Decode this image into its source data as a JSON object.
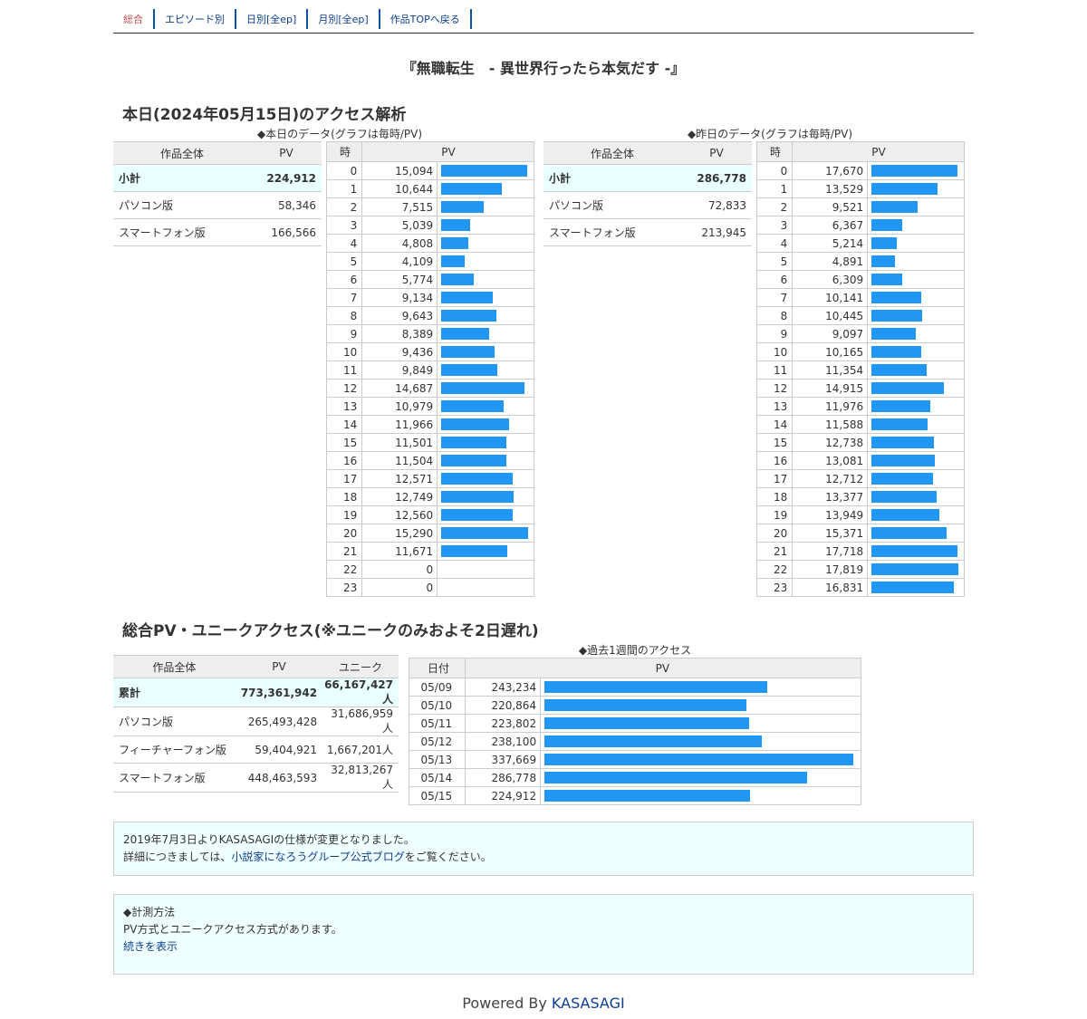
{
  "nav": [
    "総合",
    "エピソード別",
    "日別[全ep]",
    "月別[全ep]",
    "作品TOPへ戻る"
  ],
  "title": "『無職転生　- 異世界行ったら本気だす -』",
  "today_section": {
    "heading": "本日(2024年05月15日)のアクセス解析",
    "today_caption": "◆本日のデータ(グラフは毎時/PV)",
    "yesterday_caption": "◆昨日のデータ(グラフは毎時/PV)",
    "summary_headers": [
      "作品全体",
      "PV"
    ],
    "hour_headers": [
      "時",
      "PV"
    ],
    "today_summary": [
      {
        "label": "小計",
        "pv": "224,912"
      },
      {
        "label": "パソコン版",
        "pv": "58,346"
      },
      {
        "label": "スマートフォン版",
        "pv": "166,566"
      }
    ],
    "yesterday_summary": [
      {
        "label": "小計",
        "pv": "286,778"
      },
      {
        "label": "パソコン版",
        "pv": "72,833"
      },
      {
        "label": "スマートフォン版",
        "pv": "213,945"
      }
    ]
  },
  "chart_data": [
    {
      "type": "bar",
      "title": "◆本日のデータ(グラフは毎時/PV)",
      "categories": [
        "0",
        "1",
        "2",
        "3",
        "4",
        "5",
        "6",
        "7",
        "8",
        "9",
        "10",
        "11",
        "12",
        "13",
        "14",
        "15",
        "16",
        "17",
        "18",
        "19",
        "20",
        "21",
        "22",
        "23"
      ],
      "values": [
        15094,
        10644,
        7515,
        5039,
        4808,
        4109,
        5774,
        9134,
        9643,
        8389,
        9436,
        9849,
        14687,
        10979,
        11966,
        11501,
        11504,
        12571,
        12749,
        12560,
        15290,
        11671,
        0,
        0
      ],
      "labels": [
        "15,094",
        "10,644",
        "7,515",
        "5,039",
        "4,808",
        "4,109",
        "5,774",
        "9,134",
        "9,643",
        "8,389",
        "9,436",
        "9,849",
        "14,687",
        "10,979",
        "11,966",
        "11,501",
        "11,504",
        "12,571",
        "12,749",
        "12,560",
        "15,290",
        "11,671",
        "0",
        "0"
      ],
      "xlabel": "時",
      "ylabel": "PV"
    },
    {
      "type": "bar",
      "title": "◆昨日のデータ(グラフは毎時/PV)",
      "categories": [
        "0",
        "1",
        "2",
        "3",
        "4",
        "5",
        "6",
        "7",
        "8",
        "9",
        "10",
        "11",
        "12",
        "13",
        "14",
        "15",
        "16",
        "17",
        "18",
        "19",
        "20",
        "21",
        "22",
        "23"
      ],
      "values": [
        17670,
        13529,
        9521,
        6367,
        5214,
        4891,
        6309,
        10141,
        10445,
        9097,
        10165,
        11354,
        14915,
        11976,
        11588,
        12738,
        13081,
        12712,
        13377,
        13949,
        15371,
        17718,
        17819,
        16831
      ],
      "labels": [
        "17,670",
        "13,529",
        "9,521",
        "6,367",
        "5,214",
        "4,891",
        "6,309",
        "10,141",
        "10,445",
        "9,097",
        "10,165",
        "11,354",
        "14,915",
        "11,976",
        "11,588",
        "12,738",
        "13,081",
        "12,712",
        "13,377",
        "13,949",
        "15,371",
        "17,718",
        "17,819",
        "16,831"
      ],
      "xlabel": "時",
      "ylabel": "PV"
    },
    {
      "type": "bar",
      "title": "◆過去1週間のアクセス",
      "categories": [
        "05/09",
        "05/10",
        "05/11",
        "05/12",
        "05/13",
        "05/14",
        "05/15"
      ],
      "values": [
        243234,
        220864,
        223802,
        238100,
        337669,
        286778,
        224912
      ],
      "labels": [
        "243,234",
        "220,864",
        "223,802",
        "238,100",
        "337,669",
        "286,778",
        "224,912"
      ],
      "xlabel": "日付",
      "ylabel": "PV"
    }
  ],
  "total_section": {
    "heading": "総合PV・ユニークアクセス(※ユニークのみおよそ2日遅れ)",
    "headers": [
      "作品全体",
      "PV",
      "ユニーク"
    ],
    "rows": [
      {
        "label": "累計",
        "pv": "773,361,942",
        "unique": "66,167,427人"
      },
      {
        "label": "パソコン版",
        "pv": "265,493,428",
        "unique": "31,686,959人"
      },
      {
        "label": "フィーチャーフォン版",
        "pv": "59,404,921",
        "unique": "1,667,201人"
      },
      {
        "label": "スマートフォン版",
        "pv": "448,463,593",
        "unique": "32,813,267人"
      }
    ],
    "week_caption": "◆過去1週間のアクセス",
    "week_headers": [
      "日付",
      "PV"
    ]
  },
  "notice": {
    "line1": "2019年7月3日よりKASASAGIの仕様が変更となりました。",
    "line2_prefix": "詳細につきましては、",
    "line2_link": "小説家になろうグループ公式ブログ",
    "line2_suffix": "をご覧ください。"
  },
  "method": {
    "title": "◆計測方法",
    "text": "PV方式とユニークアクセス方式があります。",
    "more_link": "続きを表示"
  },
  "footer": {
    "prefix": "Powered By ",
    "link": "KASASAGI"
  },
  "colors": {
    "bar": "#2196f3",
    "link": "#0b3d91",
    "highlight_row": "#eaffff",
    "info_bg": "#f0ffff"
  }
}
